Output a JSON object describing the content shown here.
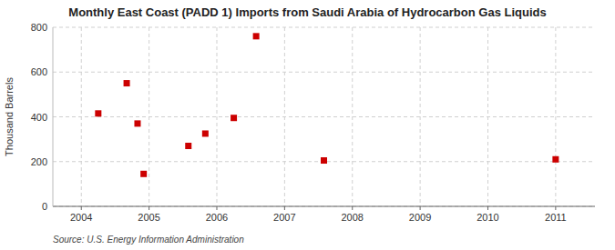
{
  "chart_data": {
    "type": "scatter",
    "title": "Monthly East Coast (PADD 1) Imports from Saudi Arabia of Hydrocarbon Gas Liquids",
    "y_label": "Thousand Barrels",
    "source": "Source: U.S. Energy Information Administration",
    "x": [
      2004.25,
      2004.67,
      2004.83,
      2004.92,
      2005.58,
      2005.83,
      2006.25,
      2006.58,
      2007.58,
      2011.0
    ],
    "values": [
      415,
      550,
      370,
      145,
      270,
      325,
      395,
      760,
      205,
      210
    ],
    "color": "#cc0000",
    "marker": "square",
    "xlim": [
      2003.58,
      2011.58
    ],
    "ylim": [
      0,
      800
    ],
    "xticks": [
      2004,
      2005,
      2006,
      2007,
      2008,
      2009,
      2010,
      2011
    ],
    "yticks": [
      0,
      200,
      400,
      600,
      800
    ],
    "grid": true
  }
}
